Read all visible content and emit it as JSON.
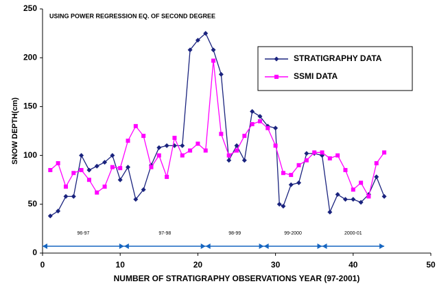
{
  "chart_data": {
    "type": "line",
    "title": "USING POWER REGRESSION EQ. OF SECOND DEGREE",
    "x_label": "NUMBER OF STRATIGRAPHY OBSERVATIONS YEAR (97-2001)",
    "y_label": "SNOW DEPTH(cm)",
    "xlim": [
      0,
      50
    ],
    "xticks": [
      0,
      10,
      20,
      30,
      40,
      50
    ],
    "ylim": [
      0,
      250
    ],
    "yticks": [
      0,
      50,
      100,
      150,
      200,
      250
    ],
    "grid": false,
    "legend": "upper right",
    "series": [
      {
        "name": "STRATIGRAPHY DATA",
        "color": "#1a237e",
        "marker": "diamond",
        "x": [
          1,
          2,
          3,
          4,
          5,
          6,
          7,
          8,
          9,
          10,
          11,
          12,
          13,
          14,
          15,
          16,
          17,
          18,
          19,
          20,
          21,
          22,
          23,
          24,
          25,
          26,
          27,
          28,
          29,
          30,
          30.5,
          31,
          32,
          33,
          34,
          35,
          36,
          37,
          38,
          39,
          40,
          41,
          42,
          43,
          44
        ],
        "values": [
          38,
          43,
          58,
          58,
          100,
          85,
          89,
          93,
          100,
          75,
          88,
          55,
          65,
          90,
          108,
          110,
          110,
          110,
          208,
          218,
          225,
          208,
          183,
          95,
          110,
          95,
          145,
          140,
          130,
          128,
          50,
          48,
          70,
          72,
          102,
          102,
          100,
          42,
          60,
          55,
          55,
          52,
          60,
          78,
          58
        ]
      },
      {
        "name": "SSMI DATA",
        "color": "#ff00ff",
        "marker": "square",
        "x": [
          1,
          2,
          3,
          4,
          5,
          6,
          7,
          8,
          9,
          10,
          11,
          12,
          13,
          14,
          15,
          16,
          17,
          18,
          19,
          20,
          21,
          22,
          23,
          24,
          25,
          26,
          27,
          28,
          29,
          30,
          31,
          32,
          33,
          34,
          35,
          36,
          37,
          38,
          39,
          40,
          41,
          42,
          43,
          44
        ],
        "values": [
          85,
          92,
          68,
          82,
          85,
          75,
          62,
          68,
          88,
          87,
          115,
          130,
          120,
          88,
          100,
          78,
          118,
          100,
          105,
          112,
          105,
          197,
          122,
          100,
          105,
          120,
          132,
          135,
          128,
          110,
          82,
          80,
          90,
          95,
          103,
          103,
          97,
          100,
          85,
          65,
          72,
          58,
          92,
          103
        ]
      }
    ],
    "periods": [
      {
        "label": "96-97",
        "start": 0,
        "end": 10.5
      },
      {
        "label": "97-98",
        "start": 10.5,
        "end": 21
      },
      {
        "label": "98-99",
        "start": 21,
        "end": 28.5
      },
      {
        "label": "99-2000",
        "start": 28.5,
        "end": 36
      },
      {
        "label": "2000-01",
        "start": 36,
        "end": 44
      }
    ],
    "period_y": 7
  }
}
